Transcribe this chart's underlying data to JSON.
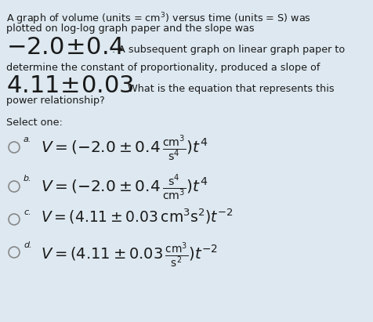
{
  "background_color": "#dde8f0",
  "text_color": "#1a1a1a",
  "body_fontsize": 9.2,
  "large_fontsize": 22,
  "option_formula_fontsize": 14,
  "option_label_fontsize": 8,
  "fig_width": 4.76,
  "fig_height": 4.11,
  "dpi": 100,
  "line1": "A graph of volume (units = $\\mathrm{cm}^{3}$) versus time (units = $\\mathrm{S}$) was",
  "line2": "plotted on log-log graph paper and the slope was",
  "slope1_text": "$-2.0\\!\\pm\\!0.4$",
  "slope1_suffix": ". A subsequent graph on linear graph paper to",
  "line4": "determine the constant of proportionality, produced a slope of",
  "slope2_text": "$4.11\\!\\pm\\!0.03$",
  "slope2_suffix": ". What is the equation that represents this",
  "line6": "power relationship?",
  "select_one": "Select one:",
  "options": [
    {
      "label": "a.",
      "formula": "$V=(-2.0\\pm0.4\\,\\frac{\\mathrm{cm}^{3}}{\\mathrm{s}^{4}})t^{4}$"
    },
    {
      "label": "b.",
      "formula": "$V=(-2.0\\pm0.4\\,\\frac{\\mathrm{s}^{4}}{\\mathrm{cm}^{3}})t^{4}$"
    },
    {
      "label": "c.",
      "formula": "$V=(4.11\\pm0.03\\,\\mathrm{cm}^{3}\\mathrm{s}^{2})t^{-2}$"
    },
    {
      "label": "d.",
      "formula": "$V=(4.11\\pm0.03\\,\\frac{\\mathrm{cm}^{3}}{\\mathrm{s}^{2}})t^{-2}$"
    }
  ]
}
